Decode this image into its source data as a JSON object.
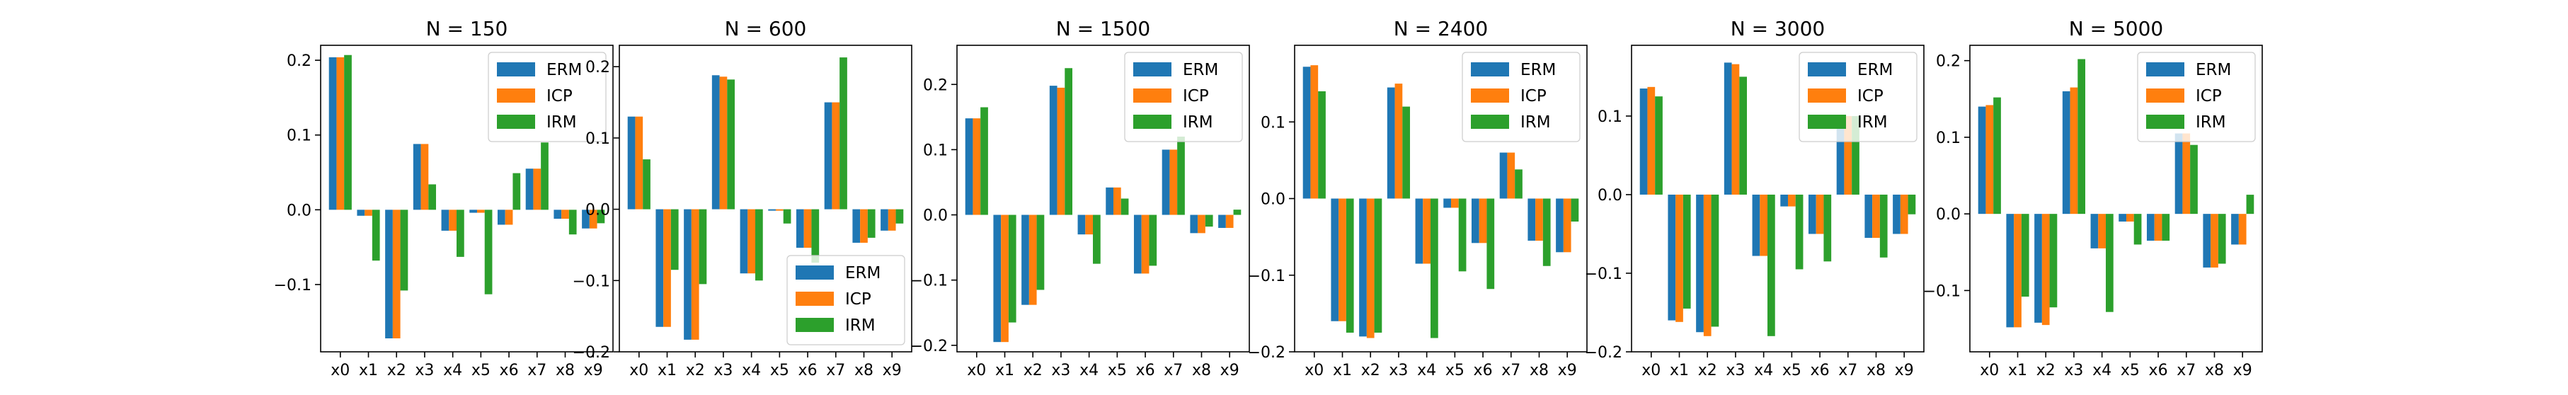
{
  "colors": {
    "ERM": "#1f77b4",
    "ICP": "#ff7f0e",
    "IRM": "#2ca02c"
  },
  "chart_data": [
    {
      "type": "bar",
      "title": "N = 150",
      "categories": [
        "x0",
        "x1",
        "x2",
        "x3",
        "x4",
        "x5",
        "x6",
        "x7",
        "x8",
        "x9"
      ],
      "ylim": [
        -0.19,
        0.22
      ],
      "yticks": [
        {
          "value": 0.2,
          "label": "0.2"
        },
        {
          "value": 0.1,
          "label": "0.1"
        },
        {
          "value": 0.0,
          "label": "0.0"
        },
        {
          "value": -0.1,
          "label": "−0.1"
        }
      ],
      "legend": "top-right",
      "series": [
        {
          "name": "ERM",
          "values": [
            0.204,
            -0.008,
            -0.172,
            0.088,
            -0.028,
            -0.004,
            -0.02,
            0.055,
            -0.012,
            -0.025
          ]
        },
        {
          "name": "ICP",
          "values": [
            0.204,
            -0.008,
            -0.172,
            0.088,
            -0.028,
            -0.004,
            -0.02,
            0.055,
            -0.012,
            -0.025
          ]
        },
        {
          "name": "IRM",
          "values": [
            0.207,
            -0.068,
            -0.108,
            0.034,
            -0.063,
            -0.113,
            0.049,
            0.09,
            -0.033,
            -0.018
          ]
        }
      ]
    },
    {
      "type": "bar",
      "title": "N = 600",
      "categories": [
        "x0",
        "x1",
        "x2",
        "x3",
        "x4",
        "x5",
        "x6",
        "x7",
        "x8",
        "x9"
      ],
      "ylim": [
        -0.2,
        0.23
      ],
      "yticks": [
        {
          "value": 0.2,
          "label": "0.2"
        },
        {
          "value": 0.1,
          "label": "0.1"
        },
        {
          "value": 0.0,
          "label": "0.0"
        },
        {
          "value": -0.1,
          "label": "−0.1"
        },
        {
          "value": -0.2,
          "label": "−0.2"
        }
      ],
      "legend": "bottom-right",
      "series": [
        {
          "name": "ERM",
          "values": [
            0.13,
            -0.165,
            -0.183,
            0.188,
            -0.09,
            -0.002,
            -0.054,
            0.15,
            -0.047,
            -0.03
          ]
        },
        {
          "name": "ICP",
          "values": [
            0.13,
            -0.165,
            -0.183,
            0.186,
            -0.09,
            -0.002,
            -0.054,
            0.15,
            -0.047,
            -0.03
          ]
        },
        {
          "name": "IRM",
          "values": [
            0.07,
            -0.085,
            -0.105,
            0.182,
            -0.1,
            -0.02,
            -0.075,
            0.213,
            -0.04,
            -0.02
          ]
        }
      ]
    },
    {
      "type": "bar",
      "title": "N = 1500",
      "categories": [
        "x0",
        "x1",
        "x2",
        "x3",
        "x4",
        "x5",
        "x6",
        "x7",
        "x8",
        "x9"
      ],
      "ylim": [
        -0.21,
        0.26
      ],
      "yticks": [
        {
          "value": 0.2,
          "label": "0.2"
        },
        {
          "value": 0.1,
          "label": "0.1"
        },
        {
          "value": 0.0,
          "label": "0.0"
        },
        {
          "value": -0.1,
          "label": "−0.1"
        },
        {
          "value": -0.2,
          "label": "−0.2"
        }
      ],
      "legend": "top-right",
      "series": [
        {
          "name": "ERM",
          "values": [
            0.148,
            -0.195,
            -0.138,
            0.198,
            -0.03,
            0.042,
            -0.09,
            0.1,
            -0.028,
            -0.02
          ]
        },
        {
          "name": "ICP",
          "values": [
            0.148,
            -0.195,
            -0.138,
            0.195,
            -0.03,
            0.042,
            -0.09,
            0.1,
            -0.028,
            -0.02
          ]
        },
        {
          "name": "IRM",
          "values": [
            0.165,
            -0.165,
            -0.115,
            0.225,
            -0.075,
            0.025,
            -0.078,
            0.12,
            -0.018,
            0.008
          ]
        }
      ]
    },
    {
      "type": "bar",
      "title": "N = 2400",
      "categories": [
        "x0",
        "x1",
        "x2",
        "x3",
        "x4",
        "x5",
        "x6",
        "x7",
        "x8",
        "x9"
      ],
      "ylim": [
        -0.2,
        0.2
      ],
      "yticks": [
        {
          "value": 0.1,
          "label": "0.1"
        },
        {
          "value": 0.0,
          "label": "0.0"
        },
        {
          "value": -0.1,
          "label": "−0.1"
        },
        {
          "value": -0.2,
          "label": "−0.2"
        }
      ],
      "legend": "top-right",
      "series": [
        {
          "name": "ERM",
          "values": [
            0.172,
            -0.16,
            -0.18,
            0.145,
            -0.085,
            -0.012,
            -0.058,
            0.06,
            -0.055,
            -0.07
          ]
        },
        {
          "name": "ICP",
          "values": [
            0.174,
            -0.16,
            -0.182,
            0.15,
            -0.085,
            -0.012,
            -0.058,
            0.06,
            -0.055,
            -0.07
          ]
        },
        {
          "name": "IRM",
          "values": [
            0.14,
            -0.175,
            -0.175,
            0.12,
            -0.182,
            -0.095,
            -0.118,
            0.038,
            -0.088,
            -0.03
          ]
        }
      ]
    },
    {
      "type": "bar",
      "title": "N = 3000",
      "categories": [
        "x0",
        "x1",
        "x2",
        "x3",
        "x4",
        "x5",
        "x6",
        "x7",
        "x8",
        "x9"
      ],
      "ylim": [
        -0.2,
        0.19
      ],
      "yticks": [
        {
          "value": 0.1,
          "label": "0.1"
        },
        {
          "value": 0.0,
          "label": "0.0"
        },
        {
          "value": -0.1,
          "label": "−0.1"
        },
        {
          "value": -0.2,
          "label": "−0.2"
        }
      ],
      "legend": "top-right",
      "series": [
        {
          "name": "ERM",
          "values": [
            0.135,
            -0.16,
            -0.175,
            0.168,
            -0.078,
            -0.015,
            -0.05,
            0.1,
            -0.055,
            -0.05
          ]
        },
        {
          "name": "ICP",
          "values": [
            0.137,
            -0.162,
            -0.18,
            0.166,
            -0.078,
            -0.015,
            -0.05,
            0.1,
            -0.055,
            -0.05
          ]
        },
        {
          "name": "IRM",
          "values": [
            0.125,
            -0.145,
            -0.168,
            0.15,
            -0.18,
            -0.095,
            -0.085,
            0.1,
            -0.08,
            -0.025
          ]
        }
      ]
    },
    {
      "type": "bar",
      "title": "N = 5000",
      "categories": [
        "x0",
        "x1",
        "x2",
        "x3",
        "x4",
        "x5",
        "x6",
        "x7",
        "x8",
        "x9"
      ],
      "ylim": [
        -0.18,
        0.22
      ],
      "yticks": [
        {
          "value": 0.2,
          "label": "0.2"
        },
        {
          "value": 0.1,
          "label": "0.1"
        },
        {
          "value": 0.0,
          "label": "0.0"
        },
        {
          "value": -0.1,
          "label": "−0.1"
        }
      ],
      "legend": "top-right",
      "series": [
        {
          "name": "ERM",
          "values": [
            0.14,
            -0.148,
            -0.142,
            0.16,
            -0.045,
            -0.01,
            -0.035,
            0.105,
            -0.07,
            -0.04
          ]
        },
        {
          "name": "ICP",
          "values": [
            0.142,
            -0.148,
            -0.145,
            0.165,
            -0.045,
            -0.01,
            -0.035,
            0.105,
            -0.07,
            -0.04
          ]
        },
        {
          "name": "IRM",
          "values": [
            0.152,
            -0.108,
            -0.122,
            0.202,
            -0.128,
            -0.04,
            -0.035,
            0.09,
            -0.065,
            0.025
          ]
        }
      ]
    }
  ]
}
